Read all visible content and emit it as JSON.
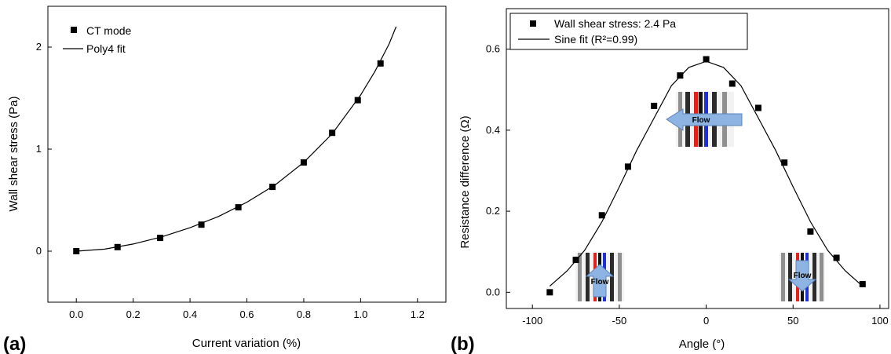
{
  "figure": {
    "panel_a_label": "(a)",
    "panel_b_label": "(b)"
  },
  "chart_data": [
    {
      "type": "scatter",
      "title": "",
      "xlabel": "Current variation (%)",
      "ylabel": "Wall shear stress (Pa)",
      "xlim": [
        -0.1,
        1.3
      ],
      "ylim": [
        -0.5,
        2.4
      ],
      "xticks": [
        0.0,
        0.2,
        0.4,
        0.6,
        0.8,
        1.0,
        1.2
      ],
      "xtick_labels": [
        "0.0",
        "0.2",
        "0.4",
        "0.6",
        "0.8",
        "1.0",
        "1.2"
      ],
      "yticks": [
        0,
        1,
        2
      ],
      "ytick_labels": [
        "0",
        "1",
        "2"
      ],
      "series": [
        {
          "name": "CT mode",
          "marker": "square",
          "x": [
            0.0,
            0.145,
            0.295,
            0.44,
            0.57,
            0.69,
            0.8,
            0.9,
            0.99,
            1.07
          ],
          "y": [
            0.0,
            0.04,
            0.13,
            0.26,
            0.43,
            0.63,
            0.87,
            1.16,
            1.48,
            1.84
          ]
        },
        {
          "name": "Poly4 fit",
          "style": "line",
          "x": [
            0.0,
            0.1,
            0.2,
            0.3,
            0.4,
            0.5,
            0.6,
            0.7,
            0.8,
            0.9,
            1.0,
            1.05,
            1.1,
            1.125
          ],
          "y": [
            0.0,
            0.02,
            0.07,
            0.14,
            0.23,
            0.34,
            0.48,
            0.65,
            0.87,
            1.15,
            1.53,
            1.76,
            2.03,
            2.2
          ]
        }
      ],
      "legend": {
        "position": "top-left",
        "color": "#000000"
      }
    },
    {
      "type": "scatter",
      "title": "",
      "xlabel": "Angle (°)",
      "ylabel": "Resistance difference (Ω)",
      "xlim": [
        -115,
        105
      ],
      "ylim": [
        -0.04,
        0.7
      ],
      "xticks": [
        -100,
        -50,
        0,
        50,
        100
      ],
      "xtick_labels": [
        "-100",
        "-50",
        "0",
        "50",
        "100"
      ],
      "yticks": [
        0.0,
        0.2,
        0.4,
        0.6
      ],
      "ytick_labels": [
        "0.0",
        "0.2",
        "0.4",
        "0.6"
      ],
      "series": [
        {
          "name": "Wall shear stress: 2.4 Pa",
          "marker": "square",
          "x": [
            -90,
            -75,
            -60,
            -45,
            -30,
            -15,
            0,
            15,
            30,
            45,
            60,
            75,
            90
          ],
          "y": [
            0.0,
            0.08,
            0.19,
            0.31,
            0.46,
            0.535,
            0.575,
            0.515,
            0.455,
            0.32,
            0.15,
            0.085,
            0.02
          ]
        },
        {
          "name": "Sine fit (R²=0.99)",
          "style": "line",
          "x": [
            -90,
            -80,
            -70,
            -60,
            -50,
            -40,
            -30,
            -20,
            -10,
            0,
            10,
            20,
            30,
            40,
            50,
            60,
            70,
            80,
            90
          ],
          "y": [
            0.015,
            0.053,
            0.103,
            0.174,
            0.26,
            0.35,
            0.43,
            0.51,
            0.555,
            0.57,
            0.555,
            0.51,
            0.43,
            0.35,
            0.26,
            0.174,
            0.103,
            0.053,
            0.015
          ]
        }
      ],
      "legend": {
        "position": "top-left",
        "boxed": true
      },
      "insets": [
        {
          "label": "Flow",
          "arrow_direction": "left",
          "angle": 0
        },
        {
          "label": "Flow",
          "arrow_direction": "up",
          "angle": -60
        },
        {
          "label": "Flow",
          "arrow_direction": "down",
          "angle": 60
        }
      ],
      "colors": {
        "arrow_fill": "#8db4e2",
        "arrow_stroke": "#5b84b8",
        "sensor_red": "#e3211b",
        "sensor_blue": "#1f2fd8"
      }
    }
  ]
}
